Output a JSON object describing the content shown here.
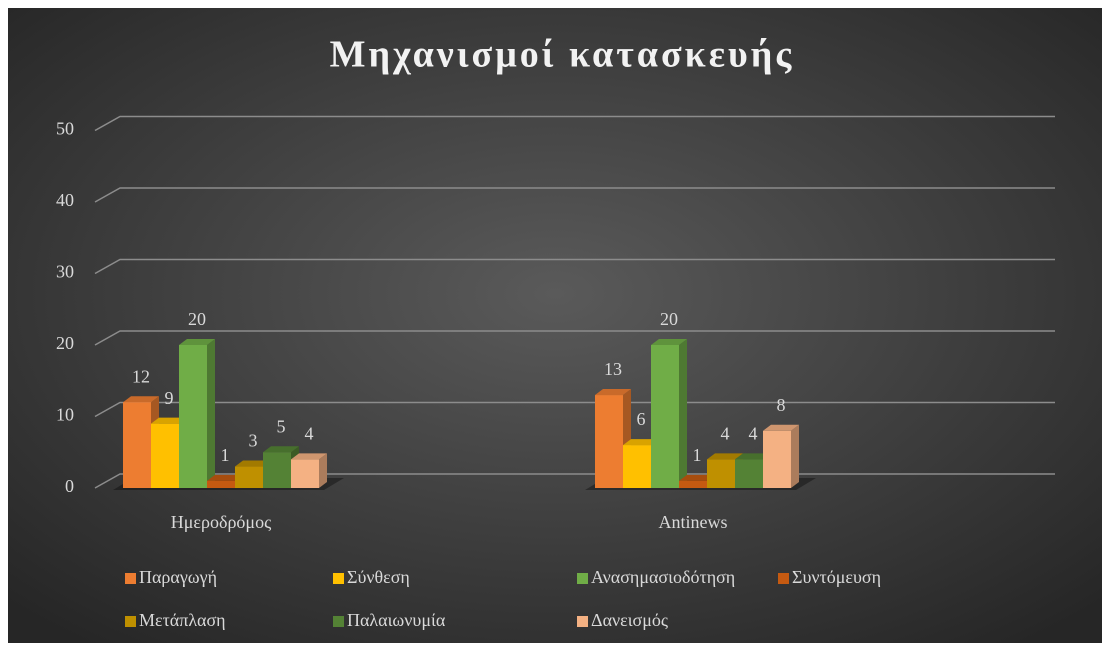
{
  "chart_data": {
    "type": "bar3d",
    "title": "Μηχανισμοί κατασκευής",
    "categories": [
      "Ημεροδρόμος",
      "Antinews"
    ],
    "series": [
      {
        "name": "Παραγωγή",
        "color": "#ed7d31",
        "values": [
          12,
          13
        ]
      },
      {
        "name": "Σύνθεση",
        "color": "#ffc000",
        "values": [
          9,
          6
        ]
      },
      {
        "name": "Ανασημασιοδότηση",
        "color": "#70ad47",
        "values": [
          20,
          20
        ]
      },
      {
        "name": "Συντόμευση",
        "color": "#c55a11",
        "values": [
          1,
          1
        ]
      },
      {
        "name": "Μετάπλαση",
        "color": "#bf9000",
        "values": [
          3,
          4
        ]
      },
      {
        "name": "Παλαιωνυμία",
        "color": "#548235",
        "values": [
          5,
          4
        ]
      },
      {
        "name": "Δανεισμός",
        "color": "#f4b183",
        "values": [
          4,
          8
        ]
      }
    ],
    "ylim": [
      0,
      50
    ],
    "yticks": [
      0,
      10,
      20,
      30,
      40,
      50
    ],
    "grid": true,
    "legend": "bottom"
  }
}
